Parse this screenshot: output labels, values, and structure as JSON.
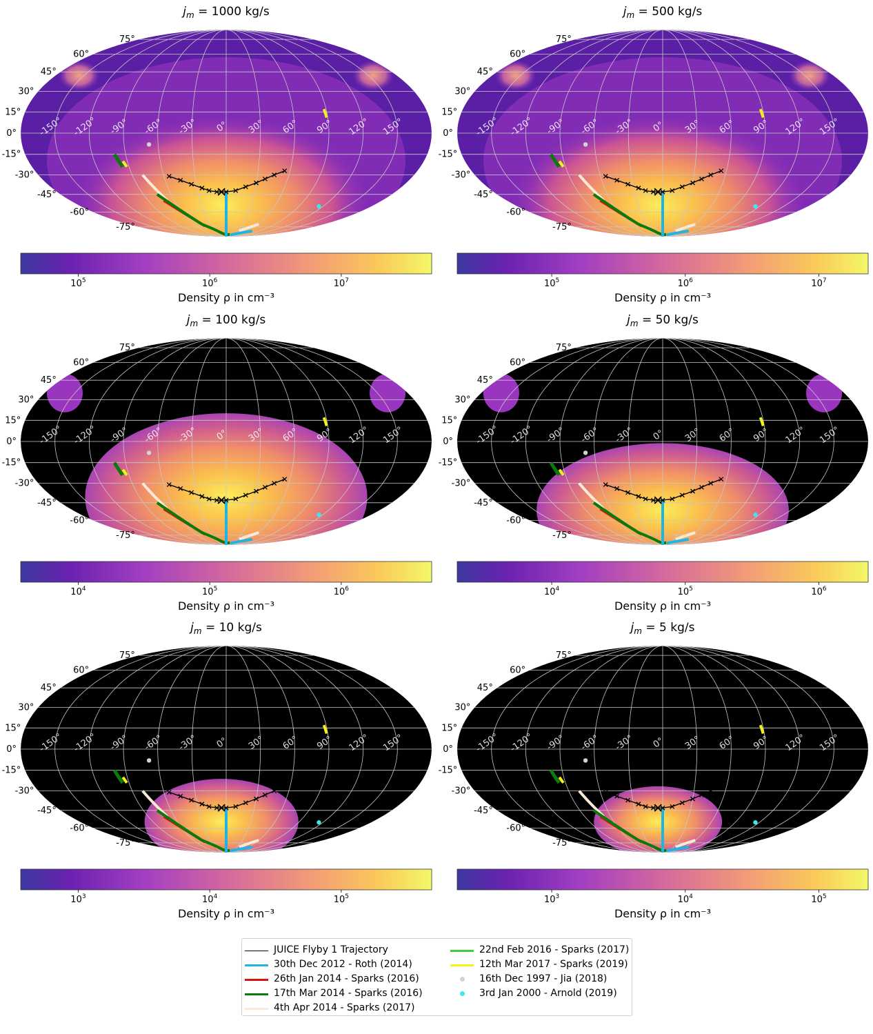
{
  "chart_data": {
    "type": "heatmap",
    "projection": "mollweide",
    "panels": [
      {
        "title": "j_m = 1000 kg/s",
        "title_prefix": "j",
        "title_sub": "m",
        "title_suffix": " = 1000 kg/s",
        "colorbar": {
          "ticks": [
            "10^5",
            "10^6",
            "10^7"
          ],
          "tick_base": "10",
          "tick_exps": [
            "5",
            "6",
            "7"
          ],
          "tick_frac": [
            0.14,
            0.46,
            0.78
          ],
          "label": "Density ρ in cm⁻³"
        },
        "zero_region": "none"
      },
      {
        "title": "j_m = 500 kg/s",
        "title_prefix": "j",
        "title_sub": "m",
        "title_suffix": " = 500 kg/s",
        "colorbar": {
          "ticks": [
            "10^5",
            "10^6",
            "10^7"
          ],
          "tick_base": "10",
          "tick_exps": [
            "5",
            "6",
            "7"
          ],
          "tick_frac": [
            0.23,
            0.555,
            0.88
          ],
          "label": "Density ρ in cm⁻³"
        },
        "zero_region": "none"
      },
      {
        "title": "j_m = 100 kg/s",
        "title_prefix": "j",
        "title_sub": "m",
        "title_suffix": " = 100 kg/s",
        "colorbar": {
          "ticks": [
            "10^4",
            "10^5",
            "10^6"
          ],
          "tick_base": "10",
          "tick_exps": [
            "4",
            "5",
            "6"
          ],
          "tick_frac": [
            0.14,
            0.46,
            0.78
          ],
          "label": "Density ρ in cm⁻³"
        },
        "zero_region": "large"
      },
      {
        "title": "j_m = 50 kg/s",
        "title_prefix": "j",
        "title_sub": "m",
        "title_suffix": " = 50 kg/s",
        "colorbar": {
          "ticks": [
            "10^4",
            "10^5",
            "10^6"
          ],
          "tick_base": "10",
          "tick_exps": [
            "4",
            "5",
            "6"
          ],
          "tick_frac": [
            0.23,
            0.555,
            0.88
          ],
          "label": "Density ρ in cm⁻³"
        },
        "zero_region": "medium"
      },
      {
        "title": "j_m = 10 kg/s",
        "title_prefix": "j",
        "title_sub": "m",
        "title_suffix": " = 10 kg/s",
        "colorbar": {
          "ticks": [
            "10^3",
            "10^4",
            "10^5"
          ],
          "tick_base": "10",
          "tick_exps": [
            "3",
            "4",
            "5"
          ],
          "tick_frac": [
            0.14,
            0.46,
            0.78
          ],
          "label": "Density ρ in cm⁻³"
        },
        "zero_region": "small"
      },
      {
        "title": "j_m = 5 kg/s",
        "title_prefix": "j",
        "title_sub": "m",
        "title_suffix": " = 5 kg/s",
        "colorbar": {
          "ticks": [
            "10^3",
            "10^4",
            "10^5"
          ],
          "tick_base": "10",
          "tick_exps": [
            "3",
            "4",
            "5"
          ],
          "tick_frac": [
            0.23,
            0.555,
            0.88
          ],
          "label": "Density ρ in cm⁻³"
        },
        "zero_region": "smallest"
      }
    ],
    "lon_tick_labels": [
      "-150°",
      "-120°",
      "-90°",
      "-60°",
      "-30°",
      "0°",
      "30°",
      "60°",
      "90°",
      "120°",
      "150°"
    ],
    "lon_ticks": [
      -150,
      -120,
      -90,
      -60,
      -30,
      0,
      30,
      60,
      90,
      120,
      150
    ],
    "lat_tick_labels": [
      "75°",
      "60°",
      "45°",
      "30°",
      "15°",
      "0°",
      "-15°",
      "-30°",
      "-45°",
      "-60°",
      "-75°"
    ],
    "lat_ticks": [
      75,
      60,
      45,
      30,
      15,
      0,
      -15,
      -30,
      -45,
      -60,
      -75
    ],
    "colormap": "plasma",
    "observations": {
      "juice_trajectory": {
        "lon": [
          -55,
          -45,
          -35,
          -25,
          -18,
          -10,
          0,
          10,
          20,
          30,
          38,
          46,
          55
        ],
        "lat": [
          -31,
          -34,
          -37,
          -40,
          -42,
          -43,
          -43,
          -42,
          -39,
          -36,
          -33,
          -30,
          -27
        ]
      },
      "closest_approach": {
        "lon": -5,
        "lat": -43
      },
      "roth_2014_a": {
        "lon": [
          0,
          0
        ],
        "lat": [
          -43,
          -90
        ]
      },
      "roth_2014_b": {
        "lon": [
          20,
          70
        ],
        "lat": [
          -86,
          -80
        ]
      },
      "sparks_2016_jan": {
        "lon": [
          -72,
          -42
        ],
        "lat": [
          -50,
          -74
        ]
      },
      "sparks_2016_mar": {
        "lon": [
          -75,
          -45,
          -15,
          0,
          15
        ],
        "lat": [
          -45,
          -72,
          -83,
          -86,
          -85
        ]
      },
      "sparks_2017_apr": {
        "lon": [
          -80,
          -68
        ],
        "lat": [
          -30,
          -50
        ]
      },
      "sparks_2017_apr_b": {
        "lon": [
          35,
          60
        ],
        "lat": [
          -80,
          -72
        ]
      },
      "sparks_2017_feb": {
        "lon": [
          -100,
          -96
        ],
        "lat": [
          -15,
          -24
        ]
      },
      "sparks_2019": [
        {
          "lon": [
            -94,
            -92
          ],
          "lat": [
            -20,
            -24
          ]
        },
        {
          "lon": [
            88,
            89
          ],
          "lat": [
            17,
            11
          ]
        }
      ],
      "jia_2018": {
        "lon": -68,
        "lat": -8
      },
      "arnold_2019": {
        "lon": 115,
        "lat": -55
      }
    }
  },
  "legend": {
    "items": [
      {
        "label": "JUICE Flyby 1 Trajectory",
        "color": "#000000",
        "kind": "thin"
      },
      {
        "label": "30th Dec 2012 - Roth (2014)",
        "color": "#1fb4e6",
        "kind": "line"
      },
      {
        "label": "26th Jan 2014 - Sparks (2016)",
        "color": "#e01010",
        "kind": "line"
      },
      {
        "label": "17th Mar 2014 - Sparks (2016)",
        "color": "#0a7a0a",
        "kind": "line"
      },
      {
        "label": "4th Apr 2014 - Sparks (2017)",
        "color": "#fbe9d8",
        "kind": "line"
      },
      {
        "label": "22nd Feb 2016 - Sparks (2017)",
        "color": "#3fcc3f",
        "kind": "line"
      },
      {
        "label": "12th Mar 2017 - Sparks (2019)",
        "color": "#f3f01a",
        "kind": "line"
      },
      {
        "label": "16th Dec 1997 - Jia (2018)",
        "color": "#d3d3d3",
        "kind": "dot"
      },
      {
        "label": "3rd Jan 2000 - Arnold (2019)",
        "color": "#3ee6ee",
        "kind": "dot"
      }
    ]
  }
}
